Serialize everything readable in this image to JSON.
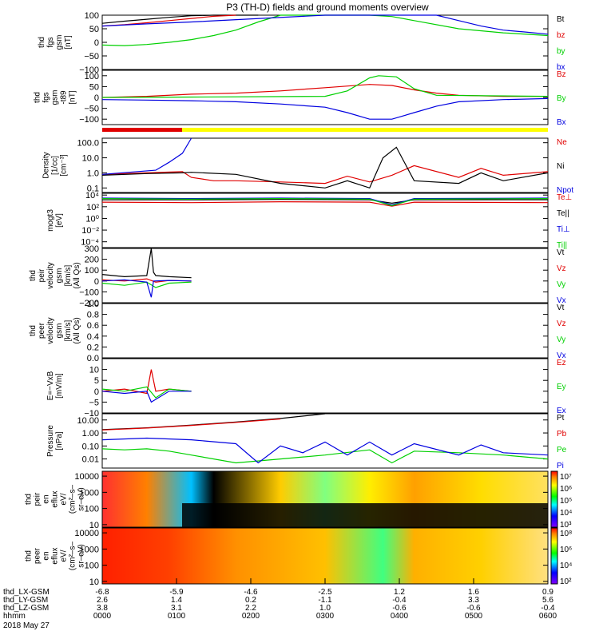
{
  "title": "P3 (TH-D) fields and ground moments overview",
  "colors": {
    "black": "#000000",
    "red": "#e00000",
    "green": "#00d000",
    "blue": "#0000e0",
    "yellow": "#ffff00"
  },
  "chart_data": [
    {
      "type": "line",
      "id": "fgs-gsm",
      "ylabel": [
        "thd",
        "fgs",
        "gsm",
        "[nT]"
      ],
      "ylim": [
        -100,
        100
      ],
      "ticks": [
        "100",
        "50",
        "0",
        "−50",
        "−100"
      ],
      "tickvals": [
        100,
        50,
        0,
        -50,
        -100
      ],
      "series": [
        {
          "name": "Bt",
          "color": "#000000",
          "x": [
            0,
            0.05,
            0.1,
            0.15,
            0.2,
            0.25,
            0.3,
            0.35
          ],
          "y": [
            70,
            78,
            85,
            92,
            98,
            100,
            100,
            100
          ]
        },
        {
          "name": "bz",
          "color": "#e00000",
          "x": [
            0,
            0.05,
            0.1,
            0.15,
            0.2,
            0.25,
            0.3
          ],
          "y": [
            60,
            65,
            72,
            80,
            88,
            96,
            100
          ]
        },
        {
          "name": "by",
          "color": "#00d000",
          "x": [
            0,
            0.05,
            0.1,
            0.15,
            0.2,
            0.25,
            0.3,
            0.35,
            0.4,
            0.42,
            0.5,
            0.55,
            0.6,
            0.65,
            0.7,
            0.8,
            0.9,
            1.0
          ],
          "y": [
            -10,
            -12,
            -8,
            0,
            10,
            25,
            45,
            75,
            100,
            100,
            100,
            100,
            100,
            95,
            80,
            50,
            35,
            25
          ]
        },
        {
          "name": "bx",
          "color": "#0000e0",
          "x": [
            0,
            0.1,
            0.2,
            0.5,
            0.75,
            0.8,
            0.85,
            0.9,
            0.95,
            1.0
          ],
          "y": [
            60,
            68,
            75,
            100,
            100,
            80,
            60,
            45,
            38,
            30
          ]
        }
      ]
    },
    {
      "type": "line",
      "id": "fgs-gsm-t89",
      "ylabel": [
        "thd",
        "fgs",
        "gsm",
        "-t89",
        "[nT]"
      ],
      "ylim": [
        -125,
        125
      ],
      "ticks": [
        "100",
        "50",
        "0",
        "−50",
        "−100"
      ],
      "tickvals": [
        100,
        50,
        0,
        -50,
        -100
      ],
      "series": [
        {
          "name": "Bz",
          "color": "#e00000",
          "x": [
            0,
            0.1,
            0.2,
            0.3,
            0.4,
            0.5,
            0.6,
            0.65,
            0.7,
            0.75,
            0.8,
            0.9,
            1.0
          ],
          "y": [
            0,
            5,
            15,
            20,
            30,
            45,
            60,
            55,
            35,
            20,
            10,
            5,
            5
          ]
        },
        {
          "name": "By",
          "color": "#00d000",
          "x": [
            0,
            0.2,
            0.5,
            0.55,
            0.6,
            0.62,
            0.66,
            0.7,
            0.75,
            1.0
          ],
          "y": [
            0,
            2,
            5,
            30,
            90,
            100,
            95,
            40,
            10,
            5
          ]
        },
        {
          "name": "Bx",
          "color": "#0000e0",
          "x": [
            0,
            0.1,
            0.2,
            0.3,
            0.4,
            0.5,
            0.55,
            0.6,
            0.65,
            0.7,
            0.75,
            0.8,
            0.9,
            1.0
          ],
          "y": [
            -10,
            -12,
            -15,
            -20,
            -30,
            -45,
            -70,
            -100,
            -100,
            -70,
            -40,
            -20,
            -10,
            -5
          ]
        }
      ]
    },
    {
      "type": "line",
      "id": "density",
      "ylabel": [
        "Density",
        "[1/cc]",
        "[cm⁻³]"
      ],
      "scale": "log",
      "ylim": [
        0.05,
        200
      ],
      "ticks": [
        "100.0",
        "10.0",
        "1.0",
        "0.1"
      ],
      "tickvals": [
        100,
        10,
        1,
        0.1
      ],
      "series": [
        {
          "name": "Ne",
          "color": "#e00000",
          "x": [
            0,
            0.1,
            0.18,
            0.2,
            0.25,
            0.3,
            0.4,
            0.5,
            0.55,
            0.6,
            0.65,
            0.7,
            0.8,
            0.85,
            0.9,
            1.0
          ],
          "y": [
            0.8,
            1.0,
            1.2,
            0.5,
            0.3,
            0.3,
            0.25,
            0.2,
            0.6,
            0.25,
            0.7,
            3,
            0.5,
            2,
            0.7,
            1.2
          ]
        },
        {
          "name": "Ni",
          "color": "#000000",
          "x": [
            0,
            0.1,
            0.18,
            0.2,
            0.3,
            0.4,
            0.5,
            0.55,
            0.6,
            0.63,
            0.66,
            0.7,
            0.8,
            0.85,
            0.9,
            1.0
          ],
          "y": [
            0.7,
            0.9,
            1.0,
            1.1,
            0.8,
            0.2,
            0.1,
            0.3,
            0.1,
            10,
            50,
            0.3,
            0.2,
            1.0,
            0.3,
            1.0
          ]
        },
        {
          "name": "Npot",
          "color": "#0000e0",
          "x": [
            0,
            0.12,
            0.15,
            0.18,
            0.2
          ],
          "y": [
            0.8,
            1.5,
            5,
            20,
            200
          ]
        }
      ]
    },
    {
      "type": "line",
      "id": "temperature",
      "ylabel": [
        "mogt3",
        "[eV]"
      ],
      "scale": "log",
      "ylim": [
        1e-05,
        20000
      ],
      "ticks": [
        "10⁴",
        "10²",
        "10⁰",
        "10⁻²",
        "10⁻⁴"
      ],
      "tickvals": [
        10000,
        100,
        1,
        0.01,
        0.0001
      ],
      "series": [
        {
          "name": "Te⊥",
          "color": "#e00000",
          "x": [
            0,
            0.2,
            0.4,
            0.6,
            0.65,
            0.7,
            1.0
          ],
          "y": [
            600,
            500,
            700,
            600,
            120,
            600,
            500
          ]
        },
        {
          "name": "Te||",
          "color": "#000000",
          "x": [
            0,
            0.2,
            0.4,
            0.6,
            0.65,
            0.7,
            1.0
          ],
          "y": [
            1500,
            1500,
            1800,
            1500,
            400,
            1500,
            1600
          ]
        },
        {
          "name": "Ti⊥",
          "color": "#0000e0",
          "x": [
            0,
            0.2,
            0.4,
            0.6,
            0.65,
            0.7,
            1.0
          ],
          "y": [
            3000,
            2500,
            3000,
            2500,
            200,
            2500,
            3000
          ]
        },
        {
          "name": "Ti||",
          "color": "#00d000",
          "x": [
            0,
            0.2,
            0.4,
            0.6,
            0.65,
            0.7,
            1.0
          ],
          "y": [
            2500,
            2000,
            2500,
            2000,
            150,
            2000,
            2500
          ]
        }
      ]
    },
    {
      "type": "line",
      "id": "peir-velocity",
      "ylabel": [
        "thd",
        "peir",
        "velocity",
        "gsm",
        "[km/s]",
        "(All Qs)"
      ],
      "ylim": [
        -200,
        300
      ],
      "ticks": [
        "300",
        "200",
        "100",
        "0",
        "−100",
        "−200"
      ],
      "tickvals": [
        300,
        200,
        100,
        0,
        -100,
        -200
      ],
      "series": [
        {
          "name": "Vt",
          "color": "#000000",
          "x": [
            0,
            0.05,
            0.1,
            0.11,
            0.115,
            0.12,
            0.15,
            0.2
          ],
          "y": [
            60,
            40,
            50,
            300,
            80,
            50,
            40,
            30
          ]
        },
        {
          "name": "Vz",
          "color": "#e00000",
          "x": [
            0,
            0.05,
            0.1,
            0.12,
            0.15,
            0.2
          ],
          "y": [
            10,
            0,
            20,
            -10,
            5,
            0
          ]
        },
        {
          "name": "Vy",
          "color": "#00d000",
          "x": [
            0,
            0.05,
            0.1,
            0.12,
            0.15,
            0.2
          ],
          "y": [
            -20,
            -40,
            -10,
            -60,
            -20,
            -10
          ]
        },
        {
          "name": "Vx",
          "color": "#0000e0",
          "x": [
            0,
            0.05,
            0.1,
            0.11,
            0.115,
            0.15,
            0.2
          ],
          "y": [
            0,
            10,
            -10,
            -150,
            0,
            5,
            0
          ]
        }
      ]
    },
    {
      "type": "line",
      "id": "peer-velocity",
      "ylabel": [
        "thd",
        "peer",
        "velocity",
        "gsm",
        "[km/s]",
        "(All Qs)"
      ],
      "ylim": [
        0,
        1
      ],
      "ticks": [
        "1.0",
        "0.8",
        "0.6",
        "0.4",
        "0.2",
        "0.0"
      ],
      "tickvals": [
        1,
        0.8,
        0.6,
        0.4,
        0.2,
        0
      ],
      "series": [
        {
          "name": "Vt",
          "color": "#000000",
          "x": [],
          "y": []
        },
        {
          "name": "Vz",
          "color": "#e00000",
          "x": [],
          "y": []
        },
        {
          "name": "Vy",
          "color": "#00d000",
          "x": [],
          "y": []
        },
        {
          "name": "Vx",
          "color": "#0000e0",
          "x": [],
          "y": []
        }
      ]
    },
    {
      "type": "line",
      "id": "efield",
      "ylabel": [
        "E=−VxB",
        "[mV/m]"
      ],
      "ylim": [
        -10,
        15
      ],
      "ticks": [
        "10",
        "5",
        "0",
        "−5",
        "−10"
      ],
      "tickvals": [
        10,
        5,
        0,
        -5,
        -10
      ],
      "series": [
        {
          "name": "Ez",
          "color": "#e00000",
          "x": [
            0,
            0.05,
            0.1,
            0.11,
            0.12,
            0.15,
            0.2
          ],
          "y": [
            0,
            1,
            -1,
            10,
            0,
            1,
            0
          ]
        },
        {
          "name": "Ey",
          "color": "#00d000",
          "x": [
            0,
            0.05,
            0.1,
            0.12,
            0.15,
            0.2
          ],
          "y": [
            1,
            0,
            2,
            -3,
            1,
            0
          ]
        },
        {
          "name": "Ex",
          "color": "#0000e0",
          "x": [
            0,
            0.05,
            0.1,
            0.11,
            0.15,
            0.2
          ],
          "y": [
            0,
            -1,
            0,
            -5,
            0,
            0
          ]
        }
      ]
    },
    {
      "type": "line",
      "id": "pressure",
      "ylabel": [
        "Pressure",
        "[nPa]"
      ],
      "scale": "log",
      "ylim": [
        0.002,
        30
      ],
      "ticks": [
        "10.00",
        "1.00",
        "0.10",
        "0.01"
      ],
      "tickvals": [
        10,
        1,
        0.1,
        0.01
      ],
      "series": [
        {
          "name": "Pt",
          "color": "#000000",
          "x": [
            0,
            0.1,
            0.2,
            0.3,
            0.4,
            0.5
          ],
          "y": [
            1.8,
            2.5,
            4,
            7,
            13,
            30
          ]
        },
        {
          "name": "Pb",
          "color": "#e00000",
          "x": [
            0,
            0.1,
            0.2,
            0.3,
            0.4
          ],
          "y": [
            1.7,
            2.4,
            3.8,
            6.5,
            12
          ]
        },
        {
          "name": "Pe",
          "color": "#00d000",
          "x": [
            0,
            0.05,
            0.1,
            0.15,
            0.2,
            0.3,
            0.4,
            0.5,
            0.6,
            0.65,
            0.7,
            0.8,
            0.9,
            1.0
          ],
          "y": [
            0.06,
            0.05,
            0.06,
            0.04,
            0.02,
            0.005,
            0.01,
            0.02,
            0.05,
            0.005,
            0.04,
            0.03,
            0.02,
            0.01
          ]
        },
        {
          "name": "Pi",
          "color": "#0000e0",
          "x": [
            0,
            0.1,
            0.2,
            0.3,
            0.35,
            0.4,
            0.45,
            0.5,
            0.55,
            0.6,
            0.65,
            0.7,
            0.8,
            0.85,
            0.9,
            1.0
          ],
          "y": [
            0.3,
            0.4,
            0.3,
            0.15,
            0.005,
            0.1,
            0.03,
            0.2,
            0.02,
            0.2,
            0.02,
            0.15,
            0.02,
            0.12,
            0.03,
            0.02
          ]
        }
      ]
    },
    {
      "type": "heatmap",
      "id": "peir-eflux",
      "ylabel": [
        "thd",
        "peir",
        "en",
        "eflux",
        "eV/",
        "(cm²–s–",
        "sr–eV)"
      ],
      "ylim": [
        7,
        20000
      ],
      "scale": "log",
      "ticks": [
        "10000",
        "1000",
        "100",
        "10"
      ],
      "tickvals": [
        10000,
        1000,
        100,
        10
      ],
      "colorbar": {
        "ticks": [
          "10⁷",
          "10⁶",
          "10⁵",
          "10⁴",
          "10³"
        ],
        "label": "[eV/(cm²–s–sr–eV)] (All Qs)"
      }
    },
    {
      "type": "heatmap",
      "id": "peer-eflux",
      "ylabel": [
        "thd",
        "peer",
        "en",
        "eflux",
        "eV/",
        "(cm²–s–",
        "sr–eV)"
      ],
      "ylim": [
        7,
        20000
      ],
      "scale": "log",
      "ticks": [
        "10000",
        "1000",
        "100",
        "10"
      ],
      "tickvals": [
        10000,
        1000,
        100,
        10
      ],
      "colorbar": {
        "ticks": [
          "10⁸",
          "10⁶",
          "10⁴",
          "10²"
        ],
        "label": "[eV/(cm²–s–sr–eV)] (All Qs)"
      }
    }
  ],
  "xaxis": {
    "rows": [
      {
        "label": "thd_LX-GSM",
        "values": [
          "-6.8",
          "-5.9",
          "-4.6",
          "-2.5",
          "1.2",
          "1.6",
          "0.9"
        ]
      },
      {
        "label": "thd_LY-GSM",
        "values": [
          "2.6",
          "1.4",
          "0.2",
          "-1.1",
          "-0.4",
          "3.3",
          "5.6"
        ]
      },
      {
        "label": "thd_LZ-GSM",
        "values": [
          "3.8",
          "3.1",
          "2.2",
          "1.0",
          "-0.6",
          "-0.6",
          "-0.4"
        ]
      },
      {
        "label": "hhmm",
        "values": [
          "0000",
          "0100",
          "0200",
          "0300",
          "0400",
          "0500",
          "0600"
        ]
      }
    ],
    "date": "2018 May 27"
  }
}
